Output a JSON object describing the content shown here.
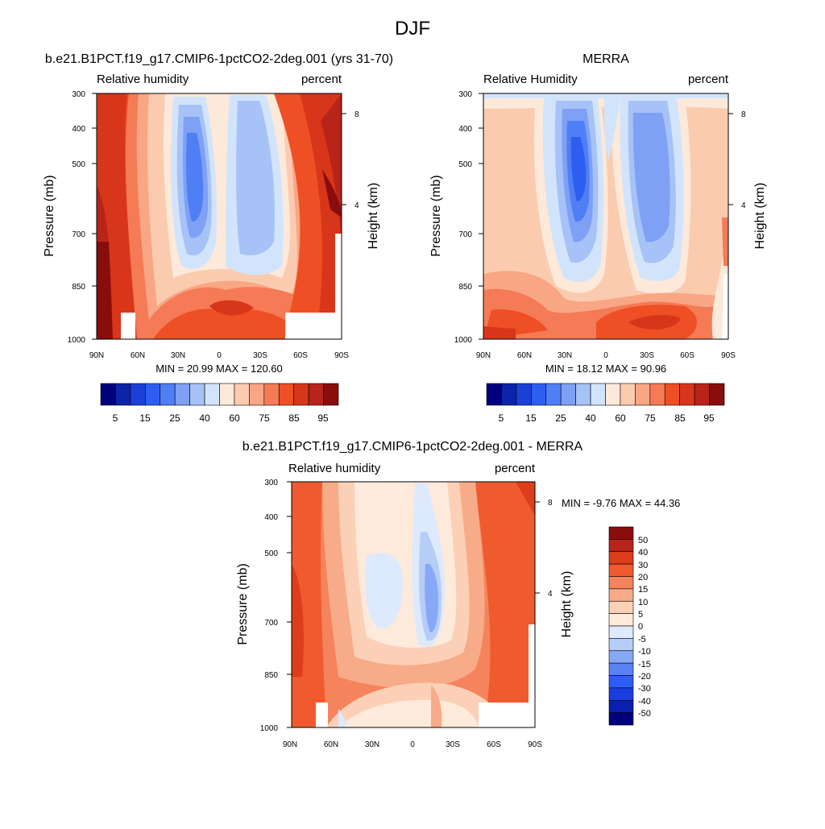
{
  "page_title": "DJF",
  "colors": {
    "rh_scale": [
      "#00007f",
      "#0c24a8",
      "#1a40d8",
      "#2e5ef0",
      "#4f7ef5",
      "#7ea0f5",
      "#a6c2f7",
      "#d2e4fb",
      "#fde9d9",
      "#fbcbb0",
      "#f9a684",
      "#f57a56",
      "#ee4f25",
      "#d8361a",
      "#b8231a",
      "#8a0d0d"
    ],
    "diff_scale": [
      "#00007f",
      "#0a1fb0",
      "#1a3ee0",
      "#2f5cf2",
      "#5a82f5",
      "#86a8f6",
      "#b6cdf8",
      "#dde9fc",
      "#fdeadb",
      "#fbd0b6",
      "#f8ab89",
      "#f5835c",
      "#ef5a2f",
      "#de3d1b",
      "#b8231a",
      "#8a0d0d"
    ]
  },
  "chart_data": [
    {
      "type": "contour",
      "title": "b.e21.B1PCT.f19_g17.CMIP6-1pctCO2-2deg.001 (yrs 31-70)",
      "left_label": "Relative humidity",
      "right_label": "percent",
      "ylabel": "Pressure (mb)",
      "ylabel_right": "Height (km)",
      "x_ticks": [
        "90N",
        "60N",
        "30N",
        "0",
        "30S",
        "60S",
        "90S"
      ],
      "y_ticks": [
        "300",
        "400",
        "500",
        "700",
        "850",
        "1000"
      ],
      "y_ticks_right": [
        "8",
        "4"
      ],
      "stats": "MIN =  20.99  MAX = 120.60",
      "colorbar_labels": [
        "5",
        "15",
        "25",
        "40",
        "60",
        "75",
        "85",
        "95"
      ]
    },
    {
      "type": "contour",
      "title": "MERRA",
      "left_label": "Relative Humidity",
      "right_label": "percent",
      "ylabel": "Pressure (mb)",
      "ylabel_right": "Height (km)",
      "x_ticks": [
        "90N",
        "60N",
        "30N",
        "0",
        "30S",
        "60S",
        "90S"
      ],
      "y_ticks": [
        "300",
        "400",
        "500",
        "700",
        "850",
        "1000"
      ],
      "y_ticks_right": [
        "8",
        "4"
      ],
      "stats": "MIN =  18.12  MAX =  90.96",
      "colorbar_labels": [
        "5",
        "15",
        "25",
        "40",
        "60",
        "75",
        "85",
        "95"
      ]
    },
    {
      "type": "contour",
      "title": "b.e21.B1PCT.f19_g17.CMIP6-1pctCO2-2deg.001 - MERRA",
      "left_label": "Relative humidity",
      "right_label": "percent",
      "ylabel": "Pressure (mb)",
      "ylabel_right": "Height (km)",
      "x_ticks": [
        "90N",
        "60N",
        "30N",
        "0",
        "30S",
        "60S",
        "90S"
      ],
      "y_ticks": [
        "300",
        "400",
        "500",
        "700",
        "850",
        "1000"
      ],
      "y_ticks_right": [
        "8",
        "4"
      ],
      "stats": "MIN =  -9.76  MAX =  44.36",
      "colorbar_labels": [
        "50",
        "40",
        "30",
        "20",
        "15",
        "10",
        "5",
        "0",
        "-5",
        "-10",
        "-15",
        "-20",
        "-30",
        "-40",
        "-50"
      ]
    }
  ]
}
